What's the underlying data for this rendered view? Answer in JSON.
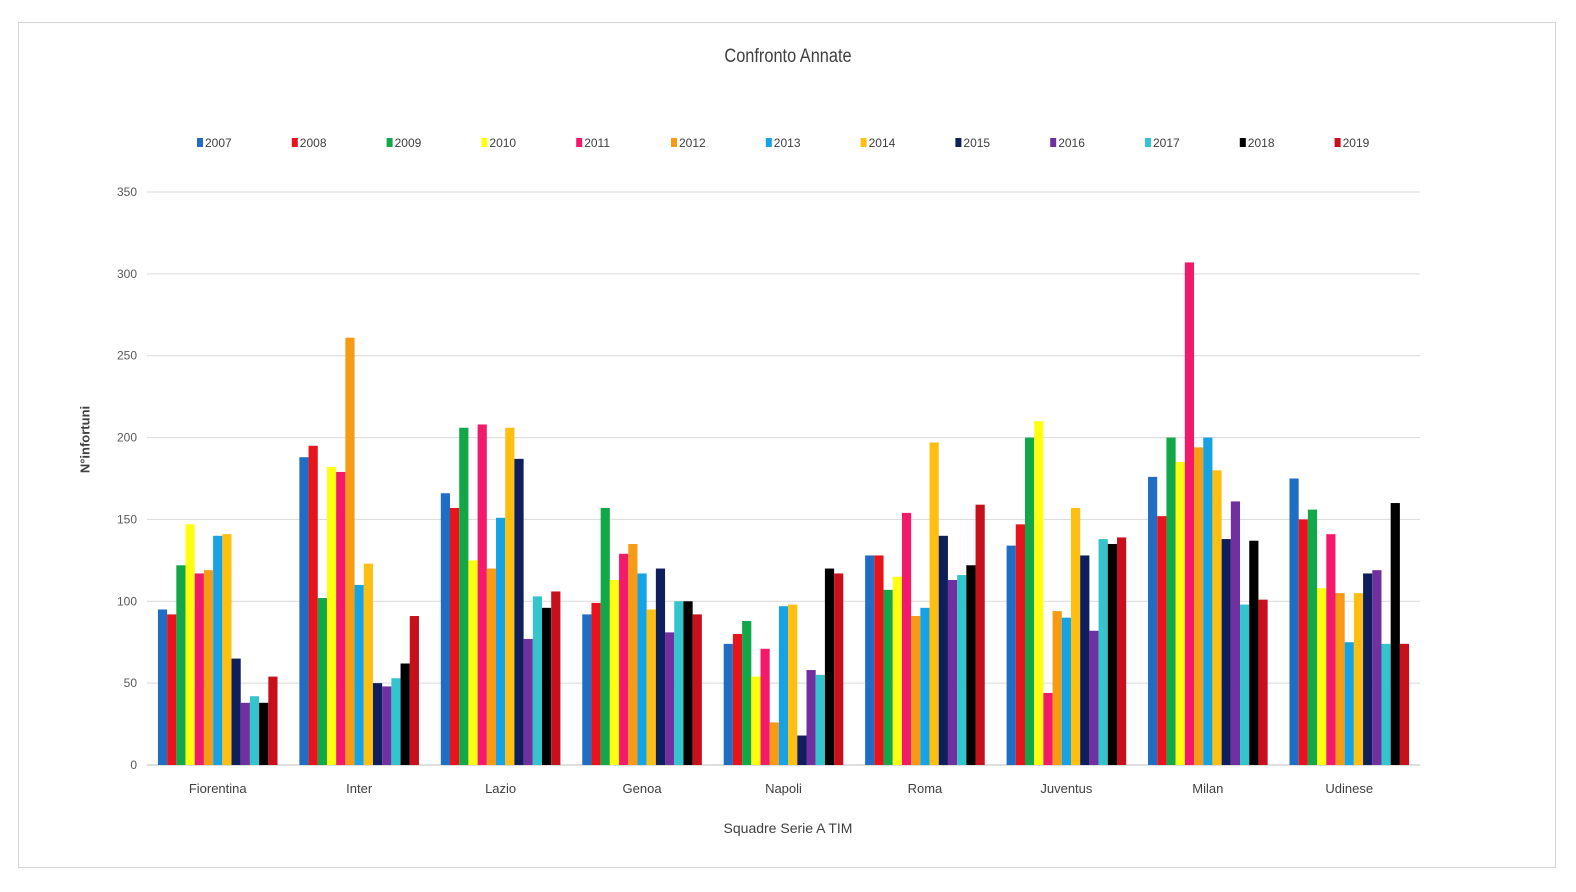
{
  "chart_data": {
    "type": "bar",
    "title": "Confronto Annate",
    "xlabel": "Squadre Serie A TIM",
    "ylabel": "N°infortuni",
    "ylim": [
      0,
      350
    ],
    "yticks": [
      0,
      50,
      100,
      150,
      200,
      250,
      300,
      350
    ],
    "grid": true,
    "legend_position": "top",
    "categories": [
      "Fiorentina",
      "Inter",
      "Lazio",
      "Genoa",
      "Napoli",
      "Roma",
      "Juventus",
      "Milan",
      "Udinese"
    ],
    "series": [
      {
        "name": "2007",
        "color": "#1f6ec4",
        "values": [
          95,
          188,
          166,
          92,
          74,
          128,
          134,
          176,
          175
        ]
      },
      {
        "name": "2008",
        "color": "#e8131b",
        "values": [
          92,
          195,
          157,
          99,
          80,
          128,
          147,
          152,
          150
        ]
      },
      {
        "name": "2009",
        "color": "#12a84a",
        "values": [
          122,
          102,
          206,
          157,
          88,
          107,
          200,
          200,
          156
        ]
      },
      {
        "name": "2010",
        "color": "#ffff10",
        "values": [
          147,
          182,
          125,
          113,
          54,
          115,
          210,
          185,
          108
        ]
      },
      {
        "name": "2011",
        "color": "#f3196b",
        "values": [
          117,
          179,
          208,
          129,
          71,
          154,
          44,
          307,
          141
        ]
      },
      {
        "name": "2012",
        "color": "#f79a14",
        "values": [
          119,
          261,
          120,
          135,
          26,
          91,
          94,
          194,
          105
        ]
      },
      {
        "name": "2013",
        "color": "#16a3e6",
        "values": [
          140,
          110,
          151,
          117,
          97,
          96,
          90,
          200,
          75
        ]
      },
      {
        "name": "2014",
        "color": "#ffbf10",
        "values": [
          141,
          123,
          206,
          95,
          98,
          197,
          157,
          180,
          105
        ]
      },
      {
        "name": "2015",
        "color": "#0f1f5e",
        "values": [
          65,
          50,
          187,
          120,
          18,
          140,
          128,
          138,
          117
        ]
      },
      {
        "name": "2016",
        "color": "#7030a0",
        "values": [
          38,
          48,
          77,
          81,
          58,
          113,
          82,
          161,
          119
        ]
      },
      {
        "name": "2017",
        "color": "#33c4cc",
        "values": [
          42,
          53,
          103,
          100,
          55,
          116,
          138,
          98,
          74
        ]
      },
      {
        "name": "2018",
        "color": "#000000",
        "values": [
          38,
          62,
          96,
          100,
          120,
          122,
          135,
          137,
          160
        ]
      },
      {
        "name": "2019",
        "color": "#c8101c",
        "values": [
          54,
          91,
          106,
          92,
          117,
          159,
          139,
          101,
          74
        ]
      }
    ]
  }
}
